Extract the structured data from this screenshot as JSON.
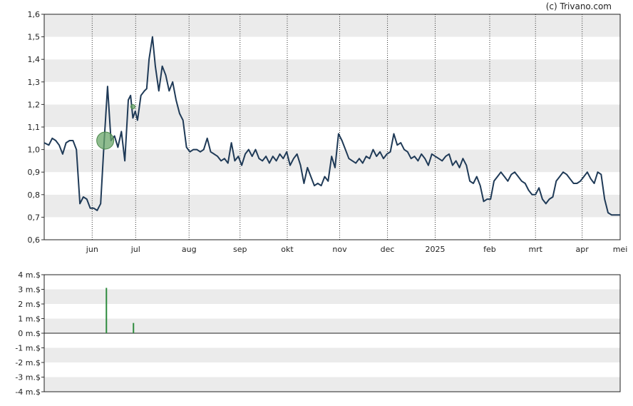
{
  "chart_data": [
    {
      "type": "line",
      "credit": "(c) Trivano.com",
      "title": "",
      "xlabel": "",
      "ylabel": "",
      "ylim": [
        0.6,
        1.6
      ],
      "y_ticks": [
        "0,6",
        "0,7",
        "0,8",
        "0,9",
        "1,0",
        "1,1",
        "1,2",
        "1,3",
        "1,4",
        "1,5",
        "1,6"
      ],
      "x_tick_labels": [
        "jun",
        "jul",
        "aug",
        "sep",
        "okt",
        "nov",
        "dec",
        "2025",
        "feb",
        "mrt",
        "apr",
        "mei"
      ],
      "x_tick_positions": [
        0.0833,
        0.1588,
        0.2515,
        0.34,
        0.422,
        0.513,
        0.596,
        0.6788,
        0.7735,
        0.853,
        0.934,
        1.0
      ],
      "grid": "horizontal bands, dotted vertical month lines",
      "series": [
        {
          "color": "#1f3a57",
          "points": [
            [
              0.0,
              1.03
            ],
            [
              0.008,
              1.02
            ],
            [
              0.014,
              1.05
            ],
            [
              0.02,
              1.04
            ],
            [
              0.026,
              1.02
            ],
            [
              0.032,
              0.98
            ],
            [
              0.038,
              1.03
            ],
            [
              0.044,
              1.04
            ],
            [
              0.05,
              1.04
            ],
            [
              0.056,
              1.0
            ],
            [
              0.062,
              0.76
            ],
            [
              0.068,
              0.79
            ],
            [
              0.074,
              0.78
            ],
            [
              0.08,
              0.74
            ],
            [
              0.086,
              0.74
            ],
            [
              0.092,
              0.73
            ],
            [
              0.098,
              0.76
            ],
            [
              0.104,
              1.03
            ],
            [
              0.11,
              1.28
            ],
            [
              0.116,
              1.04
            ],
            [
              0.122,
              1.06
            ],
            [
              0.128,
              1.01
            ],
            [
              0.134,
              1.08
            ],
            [
              0.14,
              0.95
            ],
            [
              0.146,
              1.22
            ],
            [
              0.15,
              1.24
            ],
            [
              0.154,
              1.14
            ],
            [
              0.158,
              1.17
            ],
            [
              0.162,
              1.13
            ],
            [
              0.168,
              1.24
            ],
            [
              0.174,
              1.26
            ],
            [
              0.178,
              1.27
            ],
            [
              0.182,
              1.4
            ],
            [
              0.188,
              1.5
            ],
            [
              0.193,
              1.37
            ],
            [
              0.199,
              1.26
            ],
            [
              0.205,
              1.37
            ],
            [
              0.211,
              1.33
            ],
            [
              0.217,
              1.26
            ],
            [
              0.223,
              1.3
            ],
            [
              0.229,
              1.22
            ],
            [
              0.235,
              1.16
            ],
            [
              0.241,
              1.13
            ],
            [
              0.247,
              1.01
            ],
            [
              0.253,
              0.99
            ],
            [
              0.259,
              1.0
            ],
            [
              0.265,
              1.0
            ],
            [
              0.271,
              0.99
            ],
            [
              0.277,
              1.0
            ],
            [
              0.283,
              1.05
            ],
            [
              0.289,
              0.99
            ],
            [
              0.295,
              0.98
            ],
            [
              0.301,
              0.97
            ],
            [
              0.307,
              0.95
            ],
            [
              0.313,
              0.96
            ],
            [
              0.319,
              0.94
            ],
            [
              0.325,
              1.03
            ],
            [
              0.331,
              0.95
            ],
            [
              0.337,
              0.97
            ],
            [
              0.343,
              0.93
            ],
            [
              0.349,
              0.98
            ],
            [
              0.355,
              1.0
            ],
            [
              0.361,
              0.97
            ],
            [
              0.367,
              1.0
            ],
            [
              0.373,
              0.96
            ],
            [
              0.379,
              0.95
            ],
            [
              0.385,
              0.97
            ],
            [
              0.391,
              0.94
            ],
            [
              0.397,
              0.97
            ],
            [
              0.403,
              0.95
            ],
            [
              0.409,
              0.98
            ],
            [
              0.415,
              0.96
            ],
            [
              0.421,
              0.99
            ],
            [
              0.427,
              0.93
            ],
            [
              0.433,
              0.96
            ],
            [
              0.439,
              0.98
            ],
            [
              0.445,
              0.93
            ],
            [
              0.451,
              0.85
            ],
            [
              0.457,
              0.92
            ],
            [
              0.463,
              0.88
            ],
            [
              0.469,
              0.84
            ],
            [
              0.475,
              0.85
            ],
            [
              0.481,
              0.84
            ],
            [
              0.487,
              0.88
            ],
            [
              0.493,
              0.86
            ],
            [
              0.499,
              0.97
            ],
            [
              0.505,
              0.92
            ],
            [
              0.511,
              1.07
            ],
            [
              0.517,
              1.04
            ],
            [
              0.523,
              1.0
            ],
            [
              0.529,
              0.96
            ],
            [
              0.535,
              0.95
            ],
            [
              0.541,
              0.94
            ],
            [
              0.547,
              0.96
            ],
            [
              0.553,
              0.94
            ],
            [
              0.559,
              0.97
            ],
            [
              0.565,
              0.96
            ],
            [
              0.571,
              1.0
            ],
            [
              0.577,
              0.97
            ],
            [
              0.583,
              0.99
            ],
            [
              0.589,
              0.96
            ],
            [
              0.595,
              0.98
            ],
            [
              0.601,
              0.99
            ],
            [
              0.607,
              1.07
            ],
            [
              0.613,
              1.02
            ],
            [
              0.619,
              1.03
            ],
            [
              0.625,
              1.0
            ],
            [
              0.631,
              0.99
            ],
            [
              0.637,
              0.96
            ],
            [
              0.643,
              0.97
            ],
            [
              0.649,
              0.95
            ],
            [
              0.655,
              0.98
            ],
            [
              0.661,
              0.96
            ],
            [
              0.667,
              0.93
            ],
            [
              0.673,
              0.98
            ],
            [
              0.679,
              0.97
            ],
            [
              0.685,
              0.96
            ],
            [
              0.691,
              0.95
            ],
            [
              0.697,
              0.97
            ],
            [
              0.703,
              0.98
            ],
            [
              0.709,
              0.93
            ],
            [
              0.715,
              0.95
            ],
            [
              0.721,
              0.92
            ],
            [
              0.727,
              0.96
            ],
            [
              0.733,
              0.93
            ],
            [
              0.739,
              0.86
            ],
            [
              0.745,
              0.85
            ],
            [
              0.751,
              0.88
            ],
            [
              0.757,
              0.84
            ],
            [
              0.763,
              0.77
            ],
            [
              0.769,
              0.78
            ],
            [
              0.775,
              0.78
            ],
            [
              0.781,
              0.86
            ],
            [
              0.787,
              0.88
            ],
            [
              0.793,
              0.9
            ],
            [
              0.799,
              0.88
            ],
            [
              0.805,
              0.86
            ],
            [
              0.811,
              0.89
            ],
            [
              0.817,
              0.9
            ],
            [
              0.823,
              0.88
            ],
            [
              0.829,
              0.86
            ],
            [
              0.835,
              0.85
            ],
            [
              0.841,
              0.82
            ],
            [
              0.847,
              0.8
            ],
            [
              0.853,
              0.8
            ],
            [
              0.859,
              0.83
            ],
            [
              0.865,
              0.78
            ],
            [
              0.871,
              0.76
            ],
            [
              0.877,
              0.78
            ],
            [
              0.883,
              0.79
            ],
            [
              0.889,
              0.86
            ],
            [
              0.895,
              0.88
            ],
            [
              0.901,
              0.9
            ],
            [
              0.907,
              0.89
            ],
            [
              0.913,
              0.87
            ],
            [
              0.919,
              0.85
            ],
            [
              0.925,
              0.85
            ],
            [
              0.931,
              0.86
            ],
            [
              0.937,
              0.88
            ],
            [
              0.943,
              0.9
            ],
            [
              0.949,
              0.87
            ],
            [
              0.955,
              0.85
            ],
            [
              0.961,
              0.9
            ],
            [
              0.967,
              0.89
            ],
            [
              0.973,
              0.78
            ],
            [
              0.979,
              0.72
            ],
            [
              0.985,
              0.71
            ],
            [
              0.991,
              0.71
            ],
            [
              1.0,
              0.71
            ]
          ]
        }
      ],
      "markers": [
        {
          "x": 0.106,
          "y": 1.04,
          "size": "large",
          "color": "#6aa56a"
        },
        {
          "x": 0.154,
          "y": 1.19,
          "size": "small",
          "color": "#6aa56a"
        }
      ]
    },
    {
      "type": "bar",
      "title": "",
      "xlabel": "",
      "ylabel": "",
      "ylim": [
        -4,
        4
      ],
      "y_ticks": [
        "-4 m.$",
        "-3 m.$",
        "-2 m.$",
        "-1 m.$",
        "0 m.$",
        "1 m.$",
        "2 m.$",
        "3 m.$",
        "4 m.$"
      ],
      "grid": "horizontal bands",
      "bars": [
        {
          "x": 0.108,
          "value": 3.1,
          "color": "#2e8b3e"
        },
        {
          "x": 0.155,
          "value": 0.7,
          "color": "#2e8b3e"
        }
      ]
    }
  ]
}
